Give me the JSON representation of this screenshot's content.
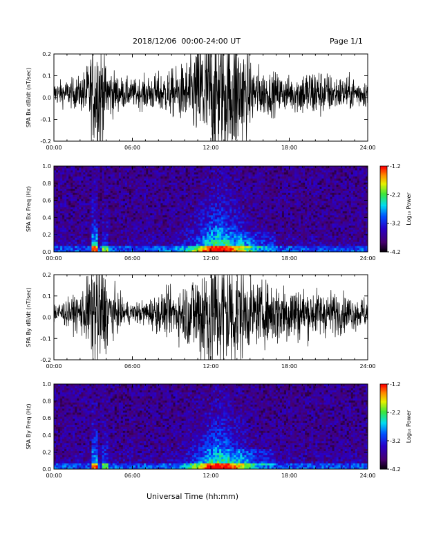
{
  "header": {
    "title": "2018/12/06  00:00-24:00 UT",
    "page": "Page 1/1"
  },
  "xaxis_label": "Universal Time (hh:mm)",
  "colorbar": {
    "label": "Log₁₀ Power",
    "ticks": [
      "-1.2",
      "-2.2",
      "-3.2",
      "-4.2"
    ],
    "range": [
      -4.2,
      -1.2
    ]
  },
  "chart_data": [
    {
      "type": "line",
      "ylabel": "SPA Bx dB/dt (nT/sec)",
      "ylim": [
        -0.2,
        0.2
      ],
      "yticks": [
        "0.2",
        "0.1",
        "0.0",
        "-0.1",
        "-0.2"
      ],
      "xlim": [
        0,
        24
      ],
      "xticks": [
        "00:00",
        "06:00",
        "12:00",
        "18:00",
        "24:00"
      ],
      "series": [
        {
          "x": [
            0,
            1,
            2,
            2.5,
            3,
            3.5,
            4,
            5,
            6,
            7,
            8,
            9,
            10,
            11,
            11.5,
            12,
            12.5,
            13,
            13.5,
            14,
            15,
            16,
            17,
            18,
            19,
            20,
            21,
            22,
            23,
            24
          ],
          "y": [
            0.035,
            0.04,
            0.05,
            0.08,
            0.15,
            0.2,
            0.09,
            0.05,
            0.04,
            0.05,
            0.06,
            0.07,
            0.09,
            0.15,
            0.2,
            0.2,
            0.2,
            0.2,
            0.2,
            0.2,
            0.1,
            0.07,
            0.06,
            0.05,
            0.07,
            0.08,
            0.06,
            0.05,
            0.05,
            0.04
          ]
        }
      ]
    },
    {
      "type": "heatmap",
      "ylabel": "SPA Bx Freq (Hz)",
      "ylim": [
        0.0,
        1.0
      ],
      "yticks": [
        "1.0",
        "0.8",
        "0.6",
        "0.4",
        "0.2",
        "0.0"
      ],
      "xlim": [
        0,
        24
      ],
      "xticks": [
        "00:00",
        "06:00",
        "12:00",
        "18:00",
        "24:00"
      ],
      "zlim": [
        -4.2,
        -1.2
      ]
    },
    {
      "type": "line",
      "ylabel": "SPA By dB/dt (nT/sec)",
      "ylim": [
        -0.2,
        0.2
      ],
      "yticks": [
        "0.2",
        "0.1",
        "0.0",
        "-0.1",
        "-0.2"
      ],
      "xlim": [
        0,
        24
      ],
      "xticks": [
        "00:00",
        "06:00",
        "12:00",
        "18:00",
        "24:00"
      ],
      "series": [
        {
          "x": [
            0,
            1,
            2,
            2.5,
            3,
            3.5,
            4,
            5,
            6,
            7,
            8,
            9,
            10,
            11,
            11.5,
            12,
            12.5,
            13,
            13.5,
            14,
            15,
            16,
            17,
            18,
            19,
            20,
            21,
            22,
            23,
            24
          ],
          "y": [
            0.035,
            0.04,
            0.06,
            0.1,
            0.17,
            0.2,
            0.11,
            0.05,
            0.03,
            0.04,
            0.06,
            0.07,
            0.09,
            0.14,
            0.2,
            0.2,
            0.2,
            0.2,
            0.2,
            0.17,
            0.1,
            0.09,
            0.1,
            0.1,
            0.08,
            0.07,
            0.07,
            0.06,
            0.05,
            0.05
          ]
        }
      ]
    },
    {
      "type": "heatmap",
      "ylabel": "SPA By Freq (Hz)",
      "ylim": [
        0.0,
        1.0
      ],
      "yticks": [
        "1.0",
        "0.8",
        "0.6",
        "0.4",
        "0.2",
        "0.0"
      ],
      "xlim": [
        0,
        24
      ],
      "xticks": [
        "00:00",
        "06:00",
        "12:00",
        "18:00",
        "24:00"
      ],
      "zlim": [
        -4.2,
        -1.2
      ]
    }
  ]
}
